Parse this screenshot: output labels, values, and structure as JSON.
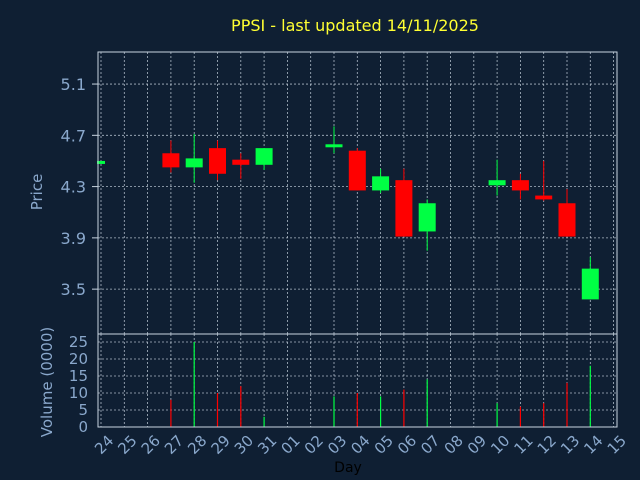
{
  "colors": {
    "background": "#0f1f33",
    "title": "#ffff33",
    "axis_text": "#8aa8cc",
    "plot_border": "#c8d4e0",
    "grid": "#c8d4e0",
    "up": "#00ff44",
    "down": "#ff0000"
  },
  "chart_data": {
    "type": "candlestick",
    "title": "PPSI - last updated 14/11/2025",
    "xlabel": "Day",
    "ylabel_price": "Price",
    "ylabel_volume": "Volume (0000)",
    "x_ticks": [
      "24",
      "25",
      "26",
      "27",
      "28",
      "29",
      "30",
      "31",
      "01",
      "02",
      "03",
      "04",
      "05",
      "06",
      "07",
      "08",
      "09",
      "10",
      "11",
      "12",
      "13",
      "14",
      "15"
    ],
    "price_ticks": [
      "3.5",
      "3.9",
      "4.3",
      "4.7",
      "5.1"
    ],
    "price_ylim": [
      3.15,
      5.35
    ],
    "volume_ticks": [
      "0",
      "5",
      "10",
      "15",
      "20",
      "25"
    ],
    "volume_ylim": [
      0,
      25
    ],
    "grid": true,
    "candles": [
      {
        "day": "24",
        "open": 4.5,
        "high": 4.5,
        "low": 4.5,
        "close": 4.5,
        "volume": 0
      },
      {
        "day": "27",
        "open": 4.56,
        "high": 4.66,
        "low": 4.41,
        "close": 4.45,
        "volume": 8
      },
      {
        "day": "28",
        "open": 4.45,
        "high": 4.71,
        "low": 4.33,
        "close": 4.52,
        "volume": 25
      },
      {
        "day": "29",
        "open": 4.6,
        "high": 4.66,
        "low": 4.35,
        "close": 4.4,
        "volume": 10
      },
      {
        "day": "30",
        "open": 4.51,
        "high": 4.56,
        "low": 4.36,
        "close": 4.47,
        "volume": 12
      },
      {
        "day": "31",
        "open": 4.47,
        "high": 4.6,
        "low": 4.43,
        "close": 4.6,
        "volume": 3
      },
      {
        "day": "03",
        "open": 4.61,
        "high": 4.77,
        "low": 4.56,
        "close": 4.63,
        "volume": 9
      },
      {
        "day": "04",
        "open": 4.58,
        "high": 4.6,
        "low": 4.27,
        "close": 4.27,
        "volume": 10
      },
      {
        "day": "05",
        "open": 4.27,
        "high": 4.44,
        "low": 4.25,
        "close": 4.38,
        "volume": 9
      },
      {
        "day": "06",
        "open": 4.35,
        "high": 4.44,
        "low": 3.91,
        "close": 3.91,
        "volume": 11
      },
      {
        "day": "07",
        "open": 3.95,
        "high": 4.2,
        "low": 3.8,
        "close": 4.17,
        "volume": 14
      },
      {
        "day": "10",
        "open": 4.31,
        "high": 4.51,
        "low": 4.23,
        "close": 4.35,
        "volume": 7
      },
      {
        "day": "11",
        "open": 4.35,
        "high": 4.4,
        "low": 4.2,
        "close": 4.27,
        "volume": 6
      },
      {
        "day": "12",
        "open": 4.23,
        "high": 4.5,
        "low": 4.19,
        "close": 4.2,
        "volume": 7
      },
      {
        "day": "13",
        "open": 4.17,
        "high": 4.28,
        "low": 3.91,
        "close": 3.91,
        "volume": 13
      },
      {
        "day": "14",
        "open": 3.42,
        "high": 3.75,
        "low": 3.42,
        "close": 3.66,
        "volume": 18
      }
    ]
  }
}
